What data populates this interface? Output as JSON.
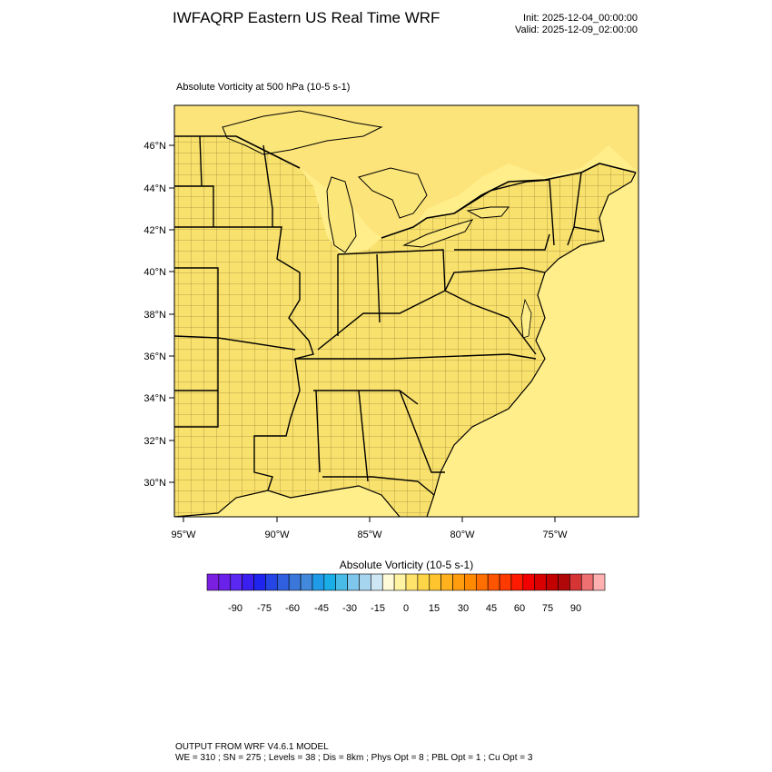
{
  "header": {
    "title": "IWFAQRP Eastern US Real Time WRF",
    "init": "Init: 2025-12-04_00:00:00",
    "valid": "Valid: 2025-12-09_02:00:00"
  },
  "plot": {
    "label": "Absolute Vorticity at 500 hPa   (10-5 s-1)",
    "lat_labels": [
      "46°N",
      "44°N",
      "42°N",
      "40°N",
      "38°N",
      "36°N",
      "34°N",
      "32°N",
      "30°N"
    ],
    "lon_labels": [
      "95°W",
      "90°W",
      "85°W",
      "80°W",
      "75°W"
    ],
    "colors": {
      "land": "#f9e16d",
      "ocean": "#ffee8a",
      "lake": "#fbe679",
      "border": "#000000"
    }
  },
  "colorbar": {
    "title": "Absolute Vorticity  (10-5 s-1)",
    "labels": [
      "-90",
      "-75",
      "-60",
      "-45",
      "-30",
      "-15",
      "0",
      "15",
      "30",
      "45",
      "60",
      "75",
      "90"
    ],
    "colors": [
      "#7a1fe0",
      "#6a22ea",
      "#5a28f0",
      "#3b1fef",
      "#1f25ee",
      "#2545e4",
      "#3060df",
      "#3b77db",
      "#4289db",
      "#1f9be8",
      "#19aee8",
      "#48bce6",
      "#7fc6ec",
      "#a6d5ef",
      "#cfe6f5",
      "#fffbd8",
      "#fff3a4",
      "#ffe36b",
      "#ffd548",
      "#ffc42e",
      "#ffb21e",
      "#ff9d0e",
      "#ff8a00",
      "#ff6f00",
      "#ff5400",
      "#ff3a00",
      "#ff1b00",
      "#f20000",
      "#d80000",
      "#c30000",
      "#b00808",
      "#d63535",
      "#ef7070",
      "#ffb0b0"
    ]
  },
  "footer": {
    "line1": "OUTPUT FROM WRF V4.6.1 MODEL",
    "line2": "WE = 310 ; SN = 275 ; Levels = 38 ; Dis = 8km ; Phys Opt = 8 ; PBL Opt = 1 ; Cu Opt = 3"
  }
}
